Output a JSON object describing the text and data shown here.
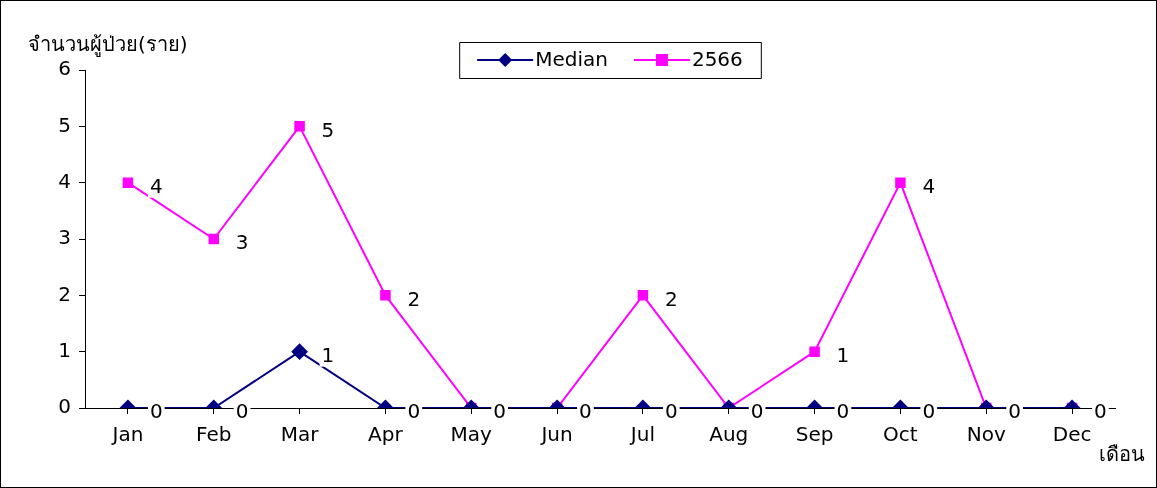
{
  "chart_data": {
    "type": "line",
    "xlabel": "เดือน",
    "ylabel": "จำนวนผู้ป่วย(ราย)",
    "categories": [
      "Jan",
      "Feb",
      "Mar",
      "Apr",
      "May",
      "Jun",
      "Jul",
      "Aug",
      "Sep",
      "Oct",
      "Nov",
      "Dec"
    ],
    "series": [
      {
        "name": "Median",
        "color": "#000080",
        "marker": "diamond",
        "values": [
          0,
          0,
          1,
          0,
          0,
          0,
          0,
          0,
          0,
          0,
          0,
          0
        ],
        "value_labels": [
          "0",
          "0",
          "1",
          "0",
          null,
          null,
          "0",
          null,
          "0",
          "0",
          null,
          null
        ]
      },
      {
        "name": "2566",
        "color": "#ff00ff",
        "marker": "square",
        "values": [
          4,
          3,
          5,
          2,
          0,
          0,
          2,
          0,
          1,
          4,
          0,
          0
        ],
        "value_labels": [
          "4",
          "3",
          "5",
          "2",
          "0",
          "0",
          "2",
          "0",
          "1",
          "4",
          "0",
          "0"
        ]
      }
    ],
    "ylim": [
      0,
      6
    ],
    "yticks": [
      0,
      1,
      2,
      3,
      4,
      5,
      6
    ],
    "legend": "top",
    "line_style": "solid"
  }
}
